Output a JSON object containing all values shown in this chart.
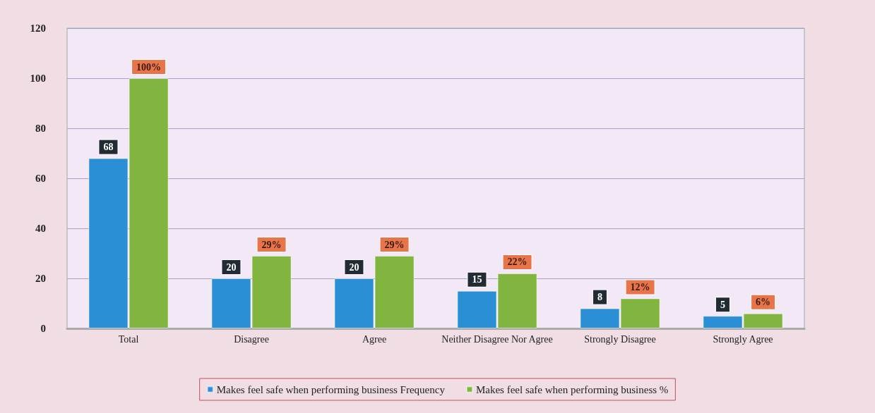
{
  "chart_data": {
    "type": "bar",
    "categories": [
      "Total",
      "Disagree",
      "Agree",
      "Neither Disagree Nor Agree",
      "Strongly Disagree",
      "Strongly Agree"
    ],
    "series": [
      {
        "name": "Makes feel safe when performing business Frequency",
        "color": "#2a8fd4",
        "values": [
          68,
          20,
          20,
          15,
          8,
          5
        ],
        "value_labels": [
          "68",
          "20",
          "20",
          "15",
          "8",
          "5"
        ]
      },
      {
        "name": "Makes feel safe when performing business %",
        "color": "#82b440",
        "values": [
          100,
          29,
          29,
          22,
          12,
          6
        ],
        "value_labels": [
          "100%",
          "29%",
          "29%",
          "22%",
          "12%",
          "6%"
        ]
      }
    ],
    "ylim": [
      0,
      120
    ],
    "yticks": [
      0,
      20,
      40,
      60,
      80,
      100,
      120
    ],
    "grid": "y",
    "legend": "bottom"
  }
}
